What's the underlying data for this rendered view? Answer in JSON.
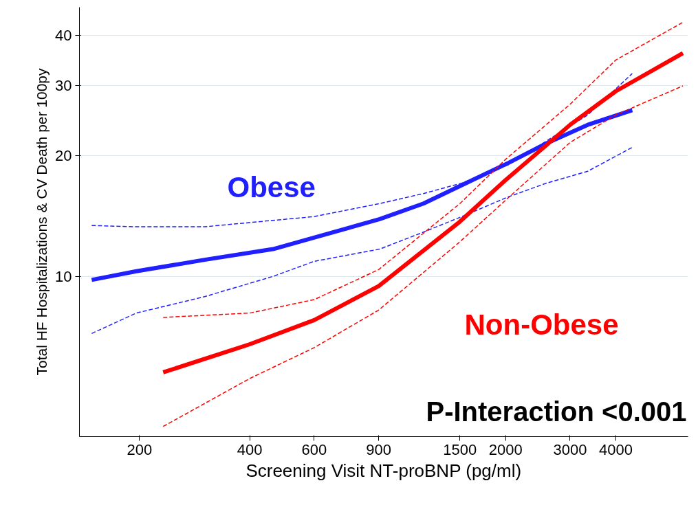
{
  "chart_data": {
    "type": "line",
    "xlabel": "Screening Visit NT-proBNP (pg/ml)",
    "ylabel": "Total HF Hospitalizations & CV Death per 100py",
    "log": "xy",
    "grid": "y",
    "line_style": "solid",
    "marker": "none",
    "xlim": [
      137,
      6300
    ],
    "ylim": [
      3.98,
      47
    ],
    "xticks": [
      200,
      400,
      600,
      900,
      1500,
      2000,
      3000,
      4000
    ],
    "yticks": [
      10,
      20,
      30,
      40
    ],
    "series": [
      {
        "name": "Obese",
        "color": "#1f1fff",
        "x": [
          148,
          196,
          301,
          463,
          599,
          906,
          1193,
          1518,
          2035,
          2590,
          3352,
          4436
        ],
        "values": [
          9.8,
          10.3,
          11.0,
          11.7,
          12.5,
          13.9,
          15.2,
          16.9,
          19.2,
          21.5,
          23.9,
          26.0
        ]
      },
      {
        "color": "#1f1fff",
        "line_style": "dashed",
        "x": [
          148,
          196,
          301,
          463,
          599,
          906,
          1193,
          1518,
          2035,
          2590,
          3352,
          4436
        ],
        "values": [
          13.4,
          13.3,
          13.3,
          13.8,
          14.1,
          15.2,
          16.1,
          17.1,
          19.0,
          21.8,
          25.3,
          32.1
        ]
      },
      {
        "color": "#1f1fff",
        "line_style": "dashed",
        "x": [
          148,
          196,
          301,
          463,
          599,
          906,
          1193,
          1518,
          2035,
          2590,
          3352,
          4436
        ],
        "values": [
          7.2,
          8.1,
          8.9,
          10.0,
          10.9,
          11.7,
          12.9,
          14.1,
          15.8,
          17.1,
          18.3,
          21.0
        ]
      },
      {
        "name": "Non-Obese",
        "color": "#ff0000",
        "x": [
          232,
          400,
          600,
          900,
          1500,
          2000,
          3000,
          4000,
          6100
        ],
        "values": [
          5.76,
          6.77,
          7.78,
          9.46,
          13.7,
          17.4,
          23.9,
          29.0,
          36.1
        ]
      },
      {
        "color": "#ff0000",
        "line_style": "dashed",
        "x": [
          232,
          400,
          600,
          900,
          1500,
          2000,
          3000,
          4000,
          6100
        ],
        "values": [
          7.9,
          8.1,
          8.75,
          10.4,
          15.2,
          19.6,
          26.9,
          34.7,
          43.1
        ]
      },
      {
        "color": "#ff0000",
        "line_style": "dashed",
        "x": [
          232,
          400,
          600,
          900,
          1500,
          2000,
          3000,
          4000,
          6100
        ],
        "values": [
          4.22,
          5.56,
          6.64,
          8.24,
          12.2,
          15.5,
          21.6,
          25.3,
          29.9
        ]
      }
    ],
    "annotations": [
      "P-Interaction <0.001"
    ]
  }
}
